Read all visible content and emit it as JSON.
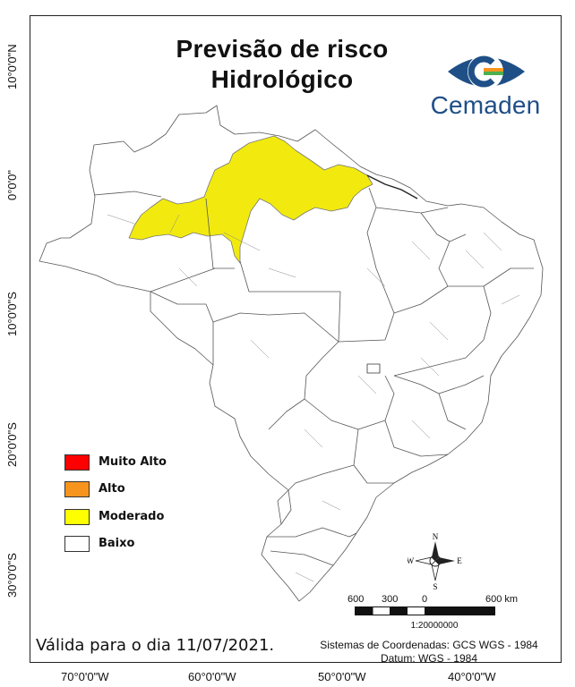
{
  "map": {
    "title_line1": "Previsão de risco",
    "title_line2": "Hidrológico",
    "brand": "Cemaden",
    "validity": "Válida para o dia 11/07/2021.",
    "coord_system": "Sistemas de Coordenadas: GCS WGS - 1984",
    "datum": "Datum: WGS - 1984",
    "scale_ratio": "1:20000000",
    "scale_labels": [
      "600",
      "300",
      "0",
      "600 km"
    ],
    "compass": {
      "n": "N",
      "s": "S",
      "e": "E",
      "w": "W"
    },
    "lat_labels": [
      "10°0'0\"N",
      "0°0'0\"",
      "10°0'0\"S",
      "20°0'0\"S",
      "30°0'0\"S"
    ],
    "lon_labels": [
      "70°0'0\"W",
      "60°0'0\"W",
      "50°0'0\"W",
      "40°0'0\"W"
    ],
    "legend": [
      {
        "label": "Muito Alto",
        "color": "#ff0000"
      },
      {
        "label": "Alto",
        "color": "#f7941d"
      },
      {
        "label": "Moderado",
        "color": "#ffff00"
      },
      {
        "label": "Baixo",
        "color": "#ffffff"
      }
    ],
    "colors": {
      "moderate_fill": "#f2ea0f",
      "low_fill": "#ffffff",
      "border": "#555555",
      "brand_blue": "#1f4f87"
    }
  }
}
